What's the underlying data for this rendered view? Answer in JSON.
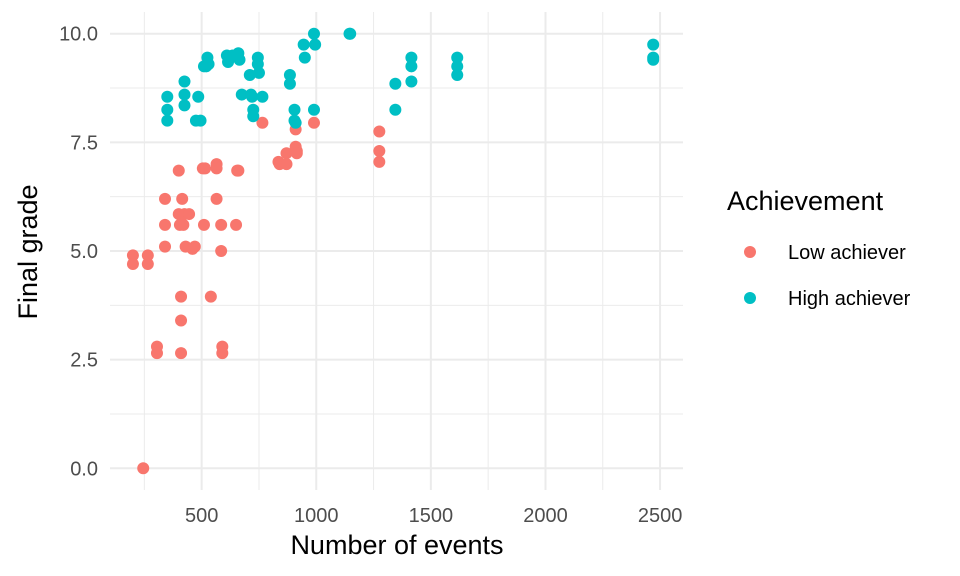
{
  "chart_data": {
    "type": "scatter",
    "xlabel": "Number of events",
    "ylabel": "Final grade",
    "xlim": [
      100,
      2600
    ],
    "ylim": [
      -0.5,
      10.5
    ],
    "x_ticks": [
      500,
      1000,
      1500,
      2000,
      2500
    ],
    "x_tick_labels": [
      "500",
      "1000",
      "1500",
      "2000",
      "2500"
    ],
    "x_minor_ticks": [
      250,
      750,
      1250,
      1750,
      2250
    ],
    "y_ticks": [
      0,
      2.5,
      5,
      7.5,
      10
    ],
    "y_tick_labels": [
      "0.0",
      "2.5",
      "5.0",
      "7.5",
      "10.0"
    ],
    "y_minor_ticks": [
      1.25,
      3.75,
      6.25,
      8.75
    ],
    "grid": true,
    "legend": {
      "title": "Achievement",
      "placement": "right"
    },
    "series": [
      {
        "name": "Low achiever",
        "color": "#F8766D",
        "points": [
          [
            245,
            0.0
          ],
          [
            200,
            4.9
          ],
          [
            200,
            4.7
          ],
          [
            265,
            4.9
          ],
          [
            265,
            4.7
          ],
          [
            305,
            2.8
          ],
          [
            305,
            2.65
          ],
          [
            340,
            6.2
          ],
          [
            340,
            5.6
          ],
          [
            340,
            5.1
          ],
          [
            400,
            6.85
          ],
          [
            400,
            5.85
          ],
          [
            405,
            5.6
          ],
          [
            410,
            3.95
          ],
          [
            410,
            3.4
          ],
          [
            410,
            2.65
          ],
          [
            415,
            6.2
          ],
          [
            420,
            5.6
          ],
          [
            425,
            5.85
          ],
          [
            430,
            5.1
          ],
          [
            445,
            5.85
          ],
          [
            460,
            5.05
          ],
          [
            470,
            5.1
          ],
          [
            505,
            6.9
          ],
          [
            510,
            5.6
          ],
          [
            515,
            6.9
          ],
          [
            540,
            3.95
          ],
          [
            565,
            7.0
          ],
          [
            565,
            6.9
          ],
          [
            565,
            6.2
          ],
          [
            585,
            5.6
          ],
          [
            585,
            5.0
          ],
          [
            590,
            2.8
          ],
          [
            590,
            2.65
          ],
          [
            650,
            5.6
          ],
          [
            655,
            6.85
          ],
          [
            660,
            6.85
          ],
          [
            765,
            7.95
          ],
          [
            835,
            7.05
          ],
          [
            840,
            7.0
          ],
          [
            870,
            7.25
          ],
          [
            870,
            7.0
          ],
          [
            910,
            7.8
          ],
          [
            910,
            7.4
          ],
          [
            915,
            7.3
          ],
          [
            915,
            7.25
          ],
          [
            990,
            7.95
          ],
          [
            1275,
            7.75
          ],
          [
            1275,
            7.3
          ],
          [
            1275,
            7.05
          ]
        ]
      },
      {
        "name": "High achiever",
        "color": "#00BFC4",
        "points": [
          [
            350,
            8.55
          ],
          [
            350,
            8.25
          ],
          [
            350,
            8.0
          ],
          [
            425,
            8.9
          ],
          [
            425,
            8.6
          ],
          [
            425,
            8.35
          ],
          [
            475,
            8.0
          ],
          [
            485,
            8.55
          ],
          [
            495,
            8.0
          ],
          [
            510,
            9.25
          ],
          [
            520,
            9.25
          ],
          [
            525,
            9.45
          ],
          [
            530,
            9.3
          ],
          [
            610,
            9.5
          ],
          [
            615,
            9.35
          ],
          [
            635,
            9.5
          ],
          [
            660,
            9.55
          ],
          [
            665,
            9.4
          ],
          [
            675,
            8.6
          ],
          [
            710,
            9.05
          ],
          [
            715,
            8.6
          ],
          [
            720,
            8.55
          ],
          [
            725,
            8.25
          ],
          [
            725,
            8.1
          ],
          [
            745,
            9.45
          ],
          [
            745,
            9.3
          ],
          [
            750,
            9.1
          ],
          [
            765,
            8.55
          ],
          [
            885,
            9.05
          ],
          [
            885,
            8.85
          ],
          [
            905,
            8.25
          ],
          [
            905,
            8.0
          ],
          [
            910,
            7.95
          ],
          [
            945,
            9.75
          ],
          [
            950,
            9.45
          ],
          [
            990,
            10.0
          ],
          [
            995,
            9.75
          ],
          [
            990,
            8.25
          ],
          [
            1145,
            10.0
          ],
          [
            1148,
            10.0
          ],
          [
            1345,
            8.85
          ],
          [
            1345,
            8.25
          ],
          [
            1415,
            9.45
          ],
          [
            1415,
            9.25
          ],
          [
            1415,
            8.9
          ],
          [
            1615,
            9.45
          ],
          [
            1615,
            9.25
          ],
          [
            1615,
            9.05
          ],
          [
            2470,
            9.75
          ],
          [
            2470,
            9.45
          ],
          [
            2470,
            9.4
          ]
        ]
      }
    ]
  }
}
